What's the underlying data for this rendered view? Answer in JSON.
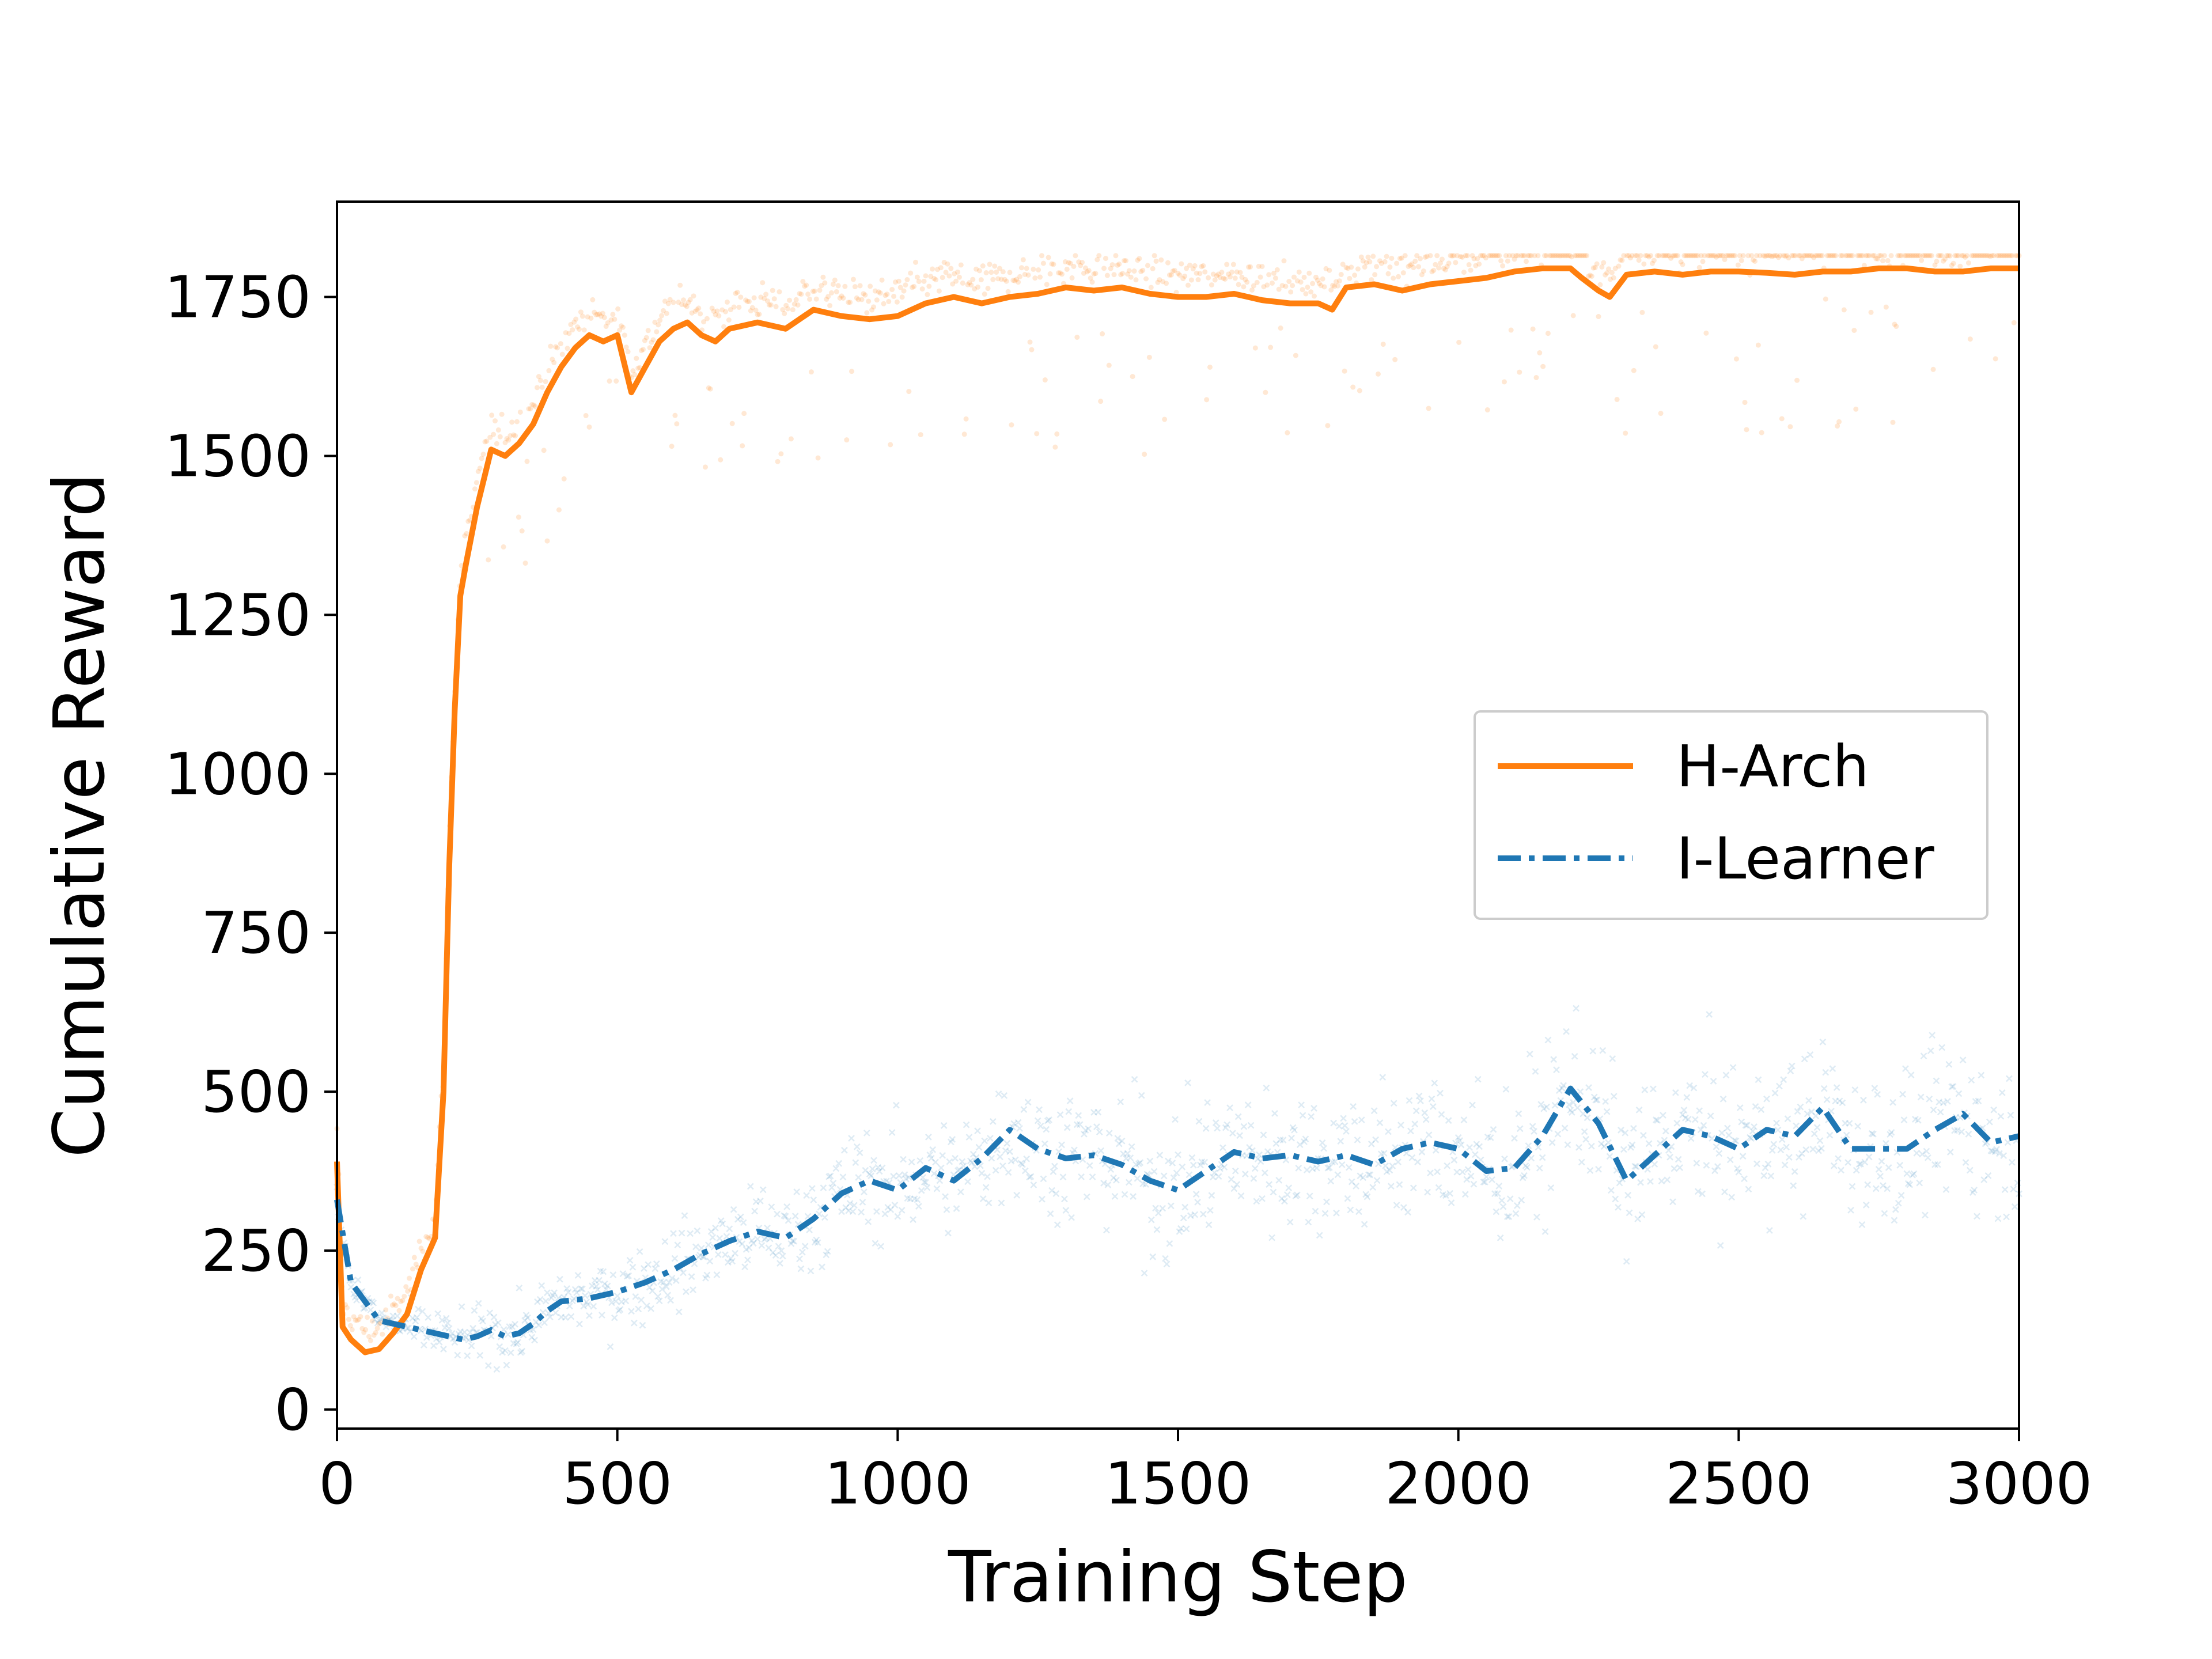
{
  "chart_data": {
    "type": "line",
    "title": "",
    "xlabel": "Training Step",
    "ylabel": "Cumulative Reward",
    "xlim": [
      0,
      3000
    ],
    "ylim": [
      -30,
      1900
    ],
    "xticks": [
      0,
      500,
      1000,
      1500,
      2000,
      2500,
      3000
    ],
    "yticks": [
      0,
      250,
      500,
      750,
      1000,
      1250,
      1500,
      1750
    ],
    "xtick_labels": [
      "0",
      "500",
      "1000",
      "1500",
      "2000",
      "2500",
      "3000"
    ],
    "ytick_labels": [
      "0",
      "250",
      "500",
      "750",
      "1000",
      "1250",
      "1500",
      "1750"
    ],
    "grid": false,
    "legend_position": "center-right",
    "series": [
      {
        "name": "H-Arch",
        "color": "#ff7f0e",
        "line_style": "solid",
        "scatter_marker": "dot",
        "x": [
          0,
          10,
          25,
          50,
          75,
          100,
          125,
          150,
          175,
          190,
          200,
          210,
          220,
          230,
          250,
          275,
          300,
          325,
          350,
          375,
          400,
          425,
          450,
          475,
          500,
          525,
          550,
          575,
          600,
          625,
          650,
          675,
          700,
          750,
          800,
          850,
          900,
          950,
          1000,
          1050,
          1100,
          1150,
          1200,
          1250,
          1300,
          1350,
          1400,
          1450,
          1500,
          1550,
          1600,
          1650,
          1700,
          1750,
          1775,
          1800,
          1850,
          1900,
          1950,
          2000,
          2050,
          2100,
          2150,
          2200,
          2220,
          2250,
          2270,
          2300,
          2350,
          2400,
          2450,
          2500,
          2550,
          2600,
          2650,
          2700,
          2750,
          2800,
          2850,
          2900,
          2950,
          3000
        ],
        "values": [
          390,
          130,
          110,
          90,
          95,
          120,
          150,
          220,
          270,
          500,
          850,
          1100,
          1280,
          1330,
          1420,
          1510,
          1500,
          1520,
          1550,
          1600,
          1640,
          1670,
          1690,
          1680,
          1690,
          1600,
          1640,
          1680,
          1700,
          1710,
          1690,
          1680,
          1700,
          1710,
          1700,
          1730,
          1720,
          1715,
          1720,
          1740,
          1750,
          1740,
          1750,
          1755,
          1765,
          1760,
          1765,
          1755,
          1750,
          1750,
          1755,
          1745,
          1740,
          1740,
          1730,
          1765,
          1770,
          1760,
          1770,
          1775,
          1780,
          1790,
          1795,
          1795,
          1780,
          1760,
          1750,
          1785,
          1790,
          1785,
          1790,
          1790,
          1788,
          1785,
          1790,
          1790,
          1795,
          1795,
          1790,
          1790,
          1795,
          1795
        ]
      },
      {
        "name": "I-Learner",
        "color": "#1f77b4",
        "line_style": "dash-dot",
        "scatter_marker": "x",
        "x": [
          0,
          25,
          50,
          75,
          100,
          125,
          150,
          175,
          200,
          225,
          250,
          275,
          300,
          325,
          350,
          375,
          400,
          450,
          500,
          550,
          600,
          650,
          700,
          750,
          800,
          850,
          900,
          950,
          1000,
          1050,
          1100,
          1150,
          1200,
          1250,
          1300,
          1350,
          1400,
          1450,
          1500,
          1550,
          1600,
          1650,
          1700,
          1750,
          1800,
          1850,
          1900,
          1950,
          2000,
          2050,
          2100,
          2150,
          2200,
          2250,
          2300,
          2350,
          2400,
          2450,
          2500,
          2550,
          2600,
          2650,
          2700,
          2750,
          2800,
          2850,
          2900,
          2950,
          3000
        ],
        "values": [
          330,
          200,
          170,
          140,
          135,
          130,
          125,
          120,
          115,
          110,
          115,
          125,
          115,
          120,
          135,
          155,
          170,
          175,
          185,
          200,
          220,
          245,
          265,
          280,
          270,
          300,
          340,
          360,
          345,
          380,
          360,
          395,
          440,
          410,
          395,
          400,
          385,
          360,
          345,
          375,
          405,
          395,
          400,
          390,
          400,
          385,
          410,
          420,
          410,
          375,
          380,
          430,
          505,
          450,
          360,
          400,
          440,
          430,
          410,
          440,
          430,
          475,
          410,
          410,
          410,
          440,
          465,
          420,
          430
        ]
      }
    ]
  }
}
